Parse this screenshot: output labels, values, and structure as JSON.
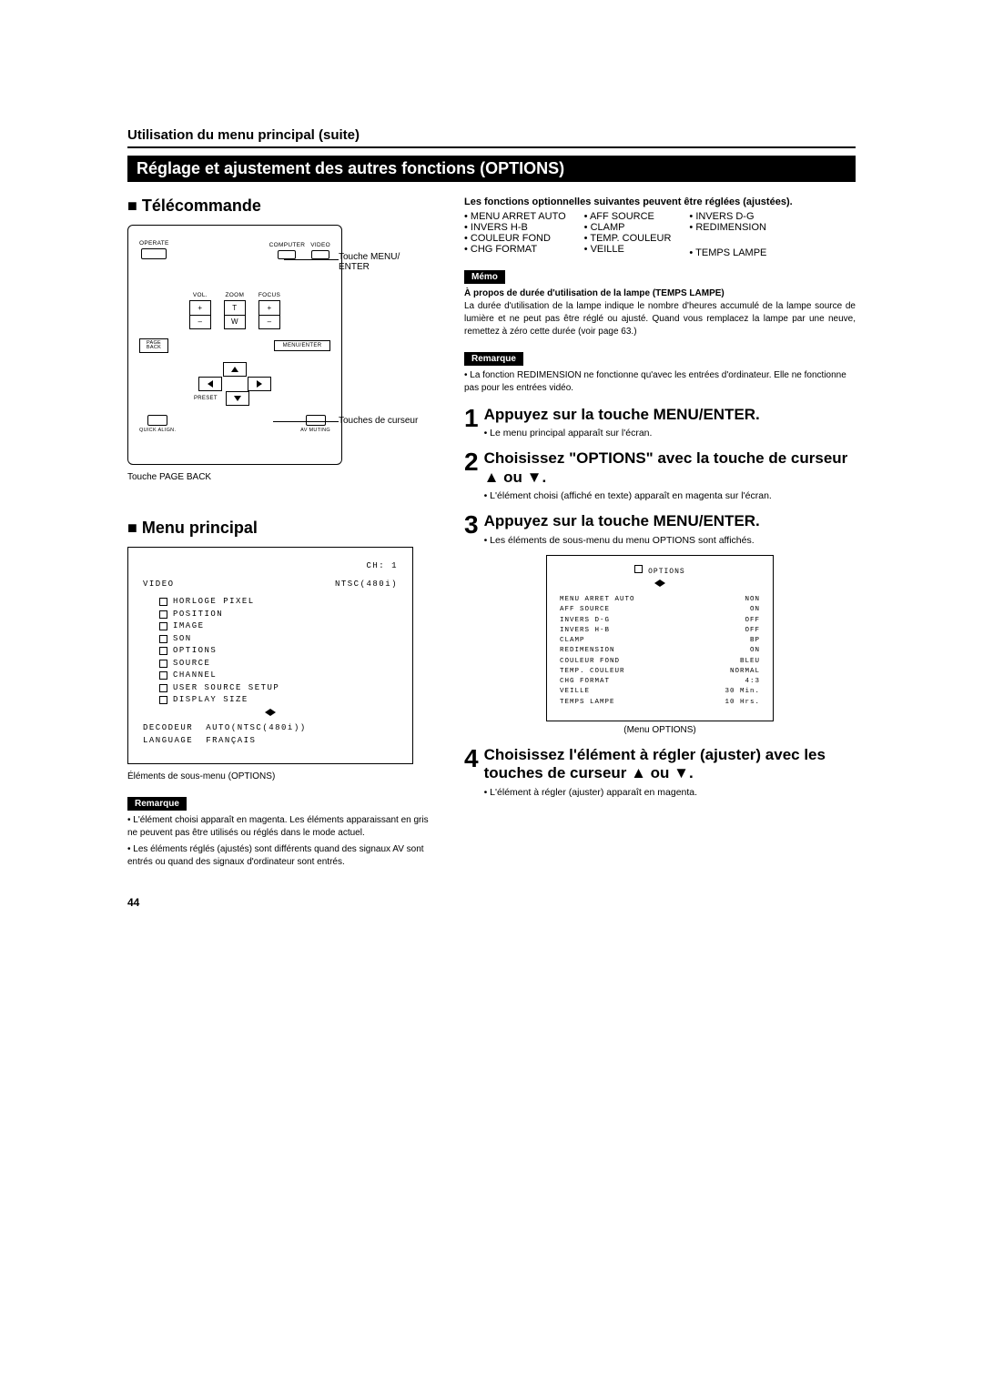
{
  "page_number": "44",
  "section_header": "Utilisation du menu principal (suite)",
  "title_bar": "Réglage et ajustement des autres fonctions (OPTIONS)",
  "left": {
    "remote_heading": "■ Télécommande",
    "remote_labels": {
      "operate": "OPERATE",
      "computer": "COMPUTER",
      "video": "VIDEO",
      "vol": "VOL.",
      "zoom": "ZOOM",
      "focus": "FOCUS",
      "t": "T",
      "w": "W",
      "plus": "+",
      "minus": "–",
      "menu_enter": "MENU/ENTER",
      "page_back": "PAGE BACK",
      "preset": "PRESET",
      "quick_align": "QUICK ALIGN.",
      "av_muting": "AV MUTING"
    },
    "callout_menu": "Touche MENU/ ENTER",
    "callout_cursor": "Touches de curseur",
    "caption_pageback": "Touche PAGE BACK",
    "menu_heading": "■ Menu principal",
    "menu_box": {
      "ch": "CH: 1",
      "video": "VIDEO",
      "ntsc": "NTSC(480i)",
      "items": [
        "HORLOGE PIXEL",
        "POSITION",
        "IMAGE",
        "SON",
        "OPTIONS",
        "SOURCE",
        "CHANNEL",
        "USER SOURCE SETUP",
        "DISPLAY SIZE"
      ],
      "decodeur": "DECODEUR",
      "decodeur_val": "AUTO(NTSC(480i))",
      "language": "LANGUAGE",
      "language_val": "FRANÇAIS"
    },
    "menu_caption": "Éléments de sous-menu (OPTIONS)",
    "remarque_label": "Remarque",
    "remarque1": "L'élément choisi apparaît en magenta. Les éléments apparaissant en gris ne peuvent pas être utilisés ou réglés dans le mode actuel.",
    "remarque2": "Les éléments réglés (ajustés) sont différents quand des signaux AV sont entrés ou quand des signaux d'ordinateur sont entrés."
  },
  "right": {
    "intro": "Les fonctions optionnelles suivantes peuvent être réglées (ajustées).",
    "func_cols": [
      [
        "MENU ARRET AUTO",
        "INVERS H-B",
        "COULEUR FOND",
        "CHG FORMAT"
      ],
      [
        "AFF SOURCE",
        "CLAMP",
        "TEMP. COULEUR",
        "VEILLE"
      ],
      [
        "INVERS D-G",
        "REDIMENSION",
        "",
        "TEMPS LAMPE"
      ]
    ],
    "memo_label": "Mémo",
    "memo_title": "À propos de durée d'utilisation de la lampe (TEMPS LAMPE)",
    "memo_body": "La durée d'utilisation de la lampe indique le nombre d'heures accumulé de la lampe source de lumière et ne peut pas être réglé ou ajusté. Quand vous remplacez la lampe par une neuve, remettez à zéro cette durée (voir page 63.)",
    "remarque_label": "Remarque",
    "remarque_body": "La fonction REDIMENSION ne fonctionne qu'avec les entrées d'ordinateur. Elle ne fonctionne pas pour les entrées vidéo.",
    "step1_title": "Appuyez sur la touche MENU/ENTER.",
    "step1_body": "Le menu principal apparaît sur l'écran.",
    "step2_title": "Choisissez \"OPTIONS\" avec la touche de curseur ▲ ou ▼.",
    "step2_body": "L'élément choisi (affiché en texte) apparaît en magenta sur l'écran.",
    "step3_title": "Appuyez sur la touche MENU/ENTER.",
    "step3_body": "Les éléments de sous-menu du menu OPTIONS sont affichés.",
    "options_box": {
      "title": "OPTIONS",
      "rows": [
        [
          "MENU ARRET AUTO",
          "NON"
        ],
        [
          "AFF SOURCE",
          "ON"
        ],
        [
          "INVERS D-G",
          "OFF"
        ],
        [
          "INVERS H-B",
          "OFF"
        ],
        [
          "CLAMP",
          "BP"
        ],
        [
          "REDIMENSION",
          "ON"
        ],
        [
          "COULEUR FOND",
          "BLEU"
        ],
        [
          "TEMP. COULEUR",
          "NORMAL"
        ],
        [
          "CHG FORMAT",
          "4:3"
        ],
        [
          "VEILLE",
          "30  Min."
        ],
        [
          "TEMPS LAMPE",
          "10  Hrs."
        ]
      ]
    },
    "options_caption": "(Menu OPTIONS)",
    "step4_title": "Choisissez l'élément à régler (ajuster) avec les touches de curseur ▲ ou ▼.",
    "step4_body": "L'élément à régler (ajuster) apparaît en magenta."
  }
}
